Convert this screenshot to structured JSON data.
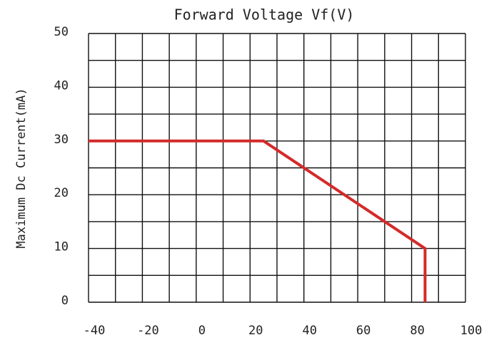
{
  "chart_data": {
    "type": "line",
    "title": "Forward Voltage Vf(V)",
    "y_label": "Maximum Dc Current(mA)",
    "x": [
      -40,
      25,
      85,
      85
    ],
    "series": [
      {
        "color": "#d42a2a",
        "values": [
          30,
          30,
          10,
          0
        ]
      }
    ],
    "xlim": [
      -40,
      100
    ],
    "xticks": [
      -40,
      -20,
      0,
      20,
      40,
      60,
      80,
      100
    ],
    "xminorticks": [
      -30,
      -10,
      10,
      30,
      50,
      70,
      90
    ],
    "ylim": [
      0,
      50
    ],
    "yticks": [
      0,
      10,
      20,
      30,
      40,
      50
    ],
    "yminorticks": [
      5,
      15,
      25,
      35,
      45
    ],
    "grid": true
  }
}
